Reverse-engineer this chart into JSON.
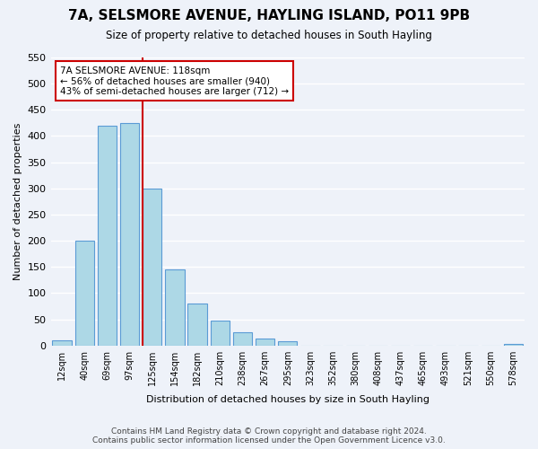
{
  "title": "7A, SELSMORE AVENUE, HAYLING ISLAND, PO11 9PB",
  "subtitle": "Size of property relative to detached houses in South Hayling",
  "xlabel": "Distribution of detached houses by size in South Hayling",
  "ylabel": "Number of detached properties",
  "bin_labels": [
    "12sqm",
    "40sqm",
    "69sqm",
    "97sqm",
    "125sqm",
    "154sqm",
    "182sqm",
    "210sqm",
    "238sqm",
    "267sqm",
    "295sqm",
    "323sqm",
    "352sqm",
    "380sqm",
    "408sqm",
    "437sqm",
    "465sqm",
    "493sqm",
    "521sqm",
    "550sqm",
    "578sqm"
  ],
  "bar_heights": [
    10,
    200,
    420,
    425,
    300,
    145,
    80,
    48,
    25,
    13,
    8,
    0,
    0,
    0,
    0,
    0,
    0,
    0,
    0,
    0,
    2
  ],
  "bar_color": "#add8e6",
  "bar_edge_color": "#5b9bd5",
  "vline_x_index": 4,
  "vline_color": "#cc0000",
  "annotation_title": "7A SELSMORE AVENUE: 118sqm",
  "annotation_line1": "← 56% of detached houses are smaller (940)",
  "annotation_line2": "43% of semi-detached houses are larger (712) →",
  "annotation_box_color": "#ffffff",
  "annotation_box_edge": "#cc0000",
  "ylim": [
    0,
    550
  ],
  "yticks": [
    0,
    50,
    100,
    150,
    200,
    250,
    300,
    350,
    400,
    450,
    500,
    550
  ],
  "footer1": "Contains HM Land Registry data © Crown copyright and database right 2024.",
  "footer2": "Contains public sector information licensed under the Open Government Licence v3.0.",
  "bg_color": "#eef2f9",
  "plot_bg_color": "#eef2f9"
}
